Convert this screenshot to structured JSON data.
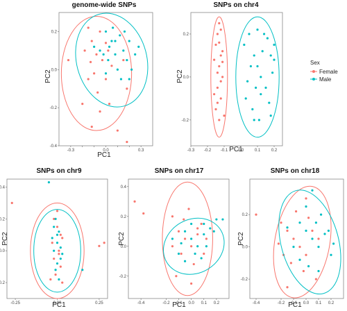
{
  "legend": {
    "title": "Sex",
    "entries": [
      {
        "label": "Female",
        "color": "#f8766d"
      },
      {
        "label": "Male",
        "color": "#00bfc4"
      }
    ]
  },
  "colors": {
    "female": "#f8766d",
    "male": "#00bfc4"
  },
  "chart_data": [
    {
      "type": "scatter",
      "title": "genome-wide SNPs",
      "xlabel": "PC1",
      "ylabel": "PC2",
      "xlim": [
        -0.4,
        0.4
      ],
      "ylim": [
        -0.4,
        0.3
      ],
      "xticks": [
        -0.3,
        -0.2,
        -0.1,
        0.0,
        0.1,
        0.2,
        0.3
      ],
      "xtick_labels": [
        "-0.3",
        "",
        "",
        "0.0",
        "",
        "",
        "0.3"
      ],
      "yticks": [
        -0.4,
        -0.2,
        0.0,
        0.2
      ],
      "ytick_labels": [
        "-0.4",
        "-0.2",
        "0.0",
        "0.2"
      ],
      "series": [
        {
          "name": "Female",
          "ellipse": {
            "cx": -0.08,
            "cy": -0.02,
            "rx": 0.3,
            "ry": 0.3,
            "angle": 0
          },
          "points": [
            [
              -0.32,
              0.05
            ],
            [
              -0.18,
              0.1
            ],
            [
              -0.15,
              0.22
            ],
            [
              -0.13,
              0.04
            ],
            [
              -0.12,
              0.15
            ],
            [
              -0.1,
              -0.02
            ],
            [
              -0.08,
              0.08
            ],
            [
              -0.07,
              -0.12
            ],
            [
              -0.05,
              0.2
            ],
            [
              -0.03,
              0.05
            ],
            [
              0.0,
              -0.05
            ],
            [
              0.02,
              0.1
            ],
            [
              0.05,
              0.02
            ],
            [
              -0.12,
              -0.3
            ],
            [
              -0.05,
              -0.22
            ],
            [
              0.1,
              -0.32
            ],
            [
              0.18,
              -0.1
            ],
            [
              0.0,
              0.14
            ],
            [
              -0.15,
              -0.05
            ],
            [
              -0.2,
              -0.18
            ],
            [
              0.03,
              -0.18
            ],
            [
              0.18,
              -0.38
            ],
            [
              0.15,
              0.05
            ]
          ]
        },
        {
          "name": "Male",
          "ellipse": {
            "cx": 0.05,
            "cy": 0.05,
            "rx": 0.3,
            "ry": 0.25,
            "angle": -15
          },
          "points": [
            [
              -0.05,
              0.1
            ],
            [
              0.0,
              0.2
            ],
            [
              0.02,
              0.05
            ],
            [
              0.05,
              0.15
            ],
            [
              0.08,
              0.08
            ],
            [
              0.1,
              0.0
            ],
            [
              0.12,
              0.18
            ],
            [
              0.15,
              0.1
            ],
            [
              0.18,
              0.05
            ],
            [
              0.2,
              0.15
            ],
            [
              0.22,
              0.0
            ],
            [
              0.25,
              0.08
            ],
            [
              -0.1,
              0.12
            ],
            [
              0.06,
              0.22
            ],
            [
              0.13,
              -0.05
            ],
            [
              0.0,
              -0.02
            ],
            [
              -0.02,
              0.08
            ],
            [
              0.03,
              0.12
            ],
            [
              0.08,
              0.15
            ],
            [
              0.16,
              0.2
            ],
            [
              0.2,
              -0.05
            ],
            [
              0.28,
              0.12
            ]
          ]
        }
      ]
    },
    {
      "type": "scatter",
      "title": "SNPs on chr4",
      "xlabel": "PC1",
      "ylabel": "PC2",
      "xlim": [
        -0.3,
        0.25
      ],
      "ylim": [
        -0.32,
        0.3
      ],
      "xticks": [
        -0.3,
        -0.2,
        -0.1,
        0.0,
        0.1,
        0.2
      ],
      "xtick_labels": [
        "-0.3",
        "-0.2",
        "-0.1",
        "0.0",
        "0.1",
        "0.2"
      ],
      "yticks": [
        -0.2,
        0.0,
        0.2
      ],
      "ytick_labels": [
        "-0.2",
        "0.0",
        "0.2"
      ],
      "series": [
        {
          "name": "Female",
          "ellipse": {
            "cx": -0.13,
            "cy": 0.0,
            "rx": 0.05,
            "ry": 0.28,
            "angle": 0
          },
          "points": [
            [
              -0.15,
              0.15
            ],
            [
              -0.14,
              0.2
            ],
            [
              -0.12,
              0.1
            ],
            [
              -0.13,
              0.05
            ],
            [
              -0.11,
              0.0
            ],
            [
              -0.14,
              -0.05
            ],
            [
              -0.12,
              -0.1
            ],
            [
              -0.15,
              -0.15
            ],
            [
              -0.13,
              -0.2
            ],
            [
              -0.11,
              0.12
            ],
            [
              -0.16,
              0.08
            ],
            [
              -0.12,
              -0.02
            ],
            [
              -0.14,
              0.02
            ],
            [
              -0.1,
              -0.18
            ],
            [
              -0.13,
              0.25
            ],
            [
              -0.16,
              -0.08
            ],
            [
              -0.11,
              0.07
            ],
            [
              -0.14,
              -0.12
            ],
            [
              -0.13,
              0.16
            ],
            [
              -0.12,
              0.22
            ]
          ]
        },
        {
          "name": "Male",
          "ellipse": {
            "cx": 0.1,
            "cy": 0.0,
            "rx": 0.13,
            "ry": 0.28,
            "angle": 0
          },
          "points": [
            [
              0.02,
              0.15
            ],
            [
              0.05,
              0.2
            ],
            [
              0.08,
              0.1
            ],
            [
              0.1,
              0.05
            ],
            [
              0.12,
              0.0
            ],
            [
              0.15,
              -0.05
            ],
            [
              0.18,
              0.1
            ],
            [
              0.2,
              0.15
            ],
            [
              0.03,
              -0.1
            ],
            [
              0.07,
              -0.15
            ],
            [
              0.11,
              -0.2
            ],
            [
              0.14,
              0.2
            ],
            [
              0.17,
              -0.12
            ],
            [
              0.19,
              0.02
            ],
            [
              0.06,
              0.05
            ],
            [
              0.09,
              -0.05
            ],
            [
              0.13,
              0.12
            ],
            [
              0.16,
              0.18
            ],
            [
              0.04,
              -0.02
            ],
            [
              0.08,
              -0.2
            ],
            [
              0.12,
              -0.08
            ],
            [
              0.18,
              -0.18
            ],
            [
              0.2,
              0.08
            ],
            [
              0.1,
              0.22
            ]
          ]
        }
      ]
    },
    {
      "type": "scatter",
      "title": "SNPs on chr9",
      "xlabel": "PC1",
      "ylabel": "PC2",
      "xlim": [
        -0.3,
        0.3
      ],
      "ylim": [
        -0.3,
        0.45
      ],
      "xticks": [
        -0.25,
        0.0,
        0.25
      ],
      "xtick_labels": [
        "-0.25",
        "0.00",
        "0.25"
      ],
      "yticks": [
        -0.2,
        0.0,
        0.2,
        0.4
      ],
      "ytick_labels": [
        "-0.2",
        "0.0",
        "0.2",
        "0.4"
      ],
      "series": [
        {
          "name": "Female",
          "ellipse": {
            "cx": 0.0,
            "cy": 0.0,
            "rx": 0.16,
            "ry": 0.3,
            "angle": 0
          },
          "points": [
            [
              -0.02,
              0.2
            ],
            [
              0.0,
              0.15
            ],
            [
              0.02,
              0.1
            ],
            [
              -0.03,
              0.05
            ],
            [
              0.01,
              0.0
            ],
            [
              -0.02,
              -0.05
            ],
            [
              0.02,
              -0.1
            ],
            [
              -0.01,
              -0.15
            ],
            [
              0.03,
              -0.2
            ],
            [
              0.28,
              0.05
            ],
            [
              0.25,
              0.03
            ],
            [
              -0.27,
              0.3
            ],
            [
              0.0,
              0.25
            ],
            [
              -0.04,
              -0.18
            ],
            [
              0.03,
              0.08
            ],
            [
              0.01,
              -0.02
            ]
          ]
        },
        {
          "name": "Male",
          "ellipse": {
            "cx": 0.0,
            "cy": 0.0,
            "rx": 0.14,
            "ry": 0.26,
            "angle": 0
          },
          "points": [
            [
              -0.01,
              0.2
            ],
            [
              0.01,
              0.12
            ],
            [
              0.0,
              0.05
            ],
            [
              -0.02,
              0.0
            ],
            [
              0.02,
              -0.05
            ],
            [
              -0.01,
              -0.12
            ],
            [
              0.01,
              -0.18
            ],
            [
              0.0,
              0.1
            ],
            [
              -0.03,
              0.08
            ],
            [
              0.02,
              0.02
            ],
            [
              -0.05,
              0.43
            ],
            [
              0.15,
              -0.12
            ],
            [
              0.0,
              -0.08
            ],
            [
              -0.02,
              0.15
            ],
            [
              0.03,
              -0.02
            ]
          ]
        }
      ]
    },
    {
      "type": "scatter",
      "title": "SNPs on chr17",
      "xlabel": "PC1",
      "ylabel": "PC2",
      "xlim": [
        -0.5,
        0.3
      ],
      "ylim": [
        -0.35,
        0.45
      ],
      "xticks": [
        -0.4,
        -0.2,
        -0.1,
        0.0,
        0.1,
        0.2
      ],
      "xtick_labels": [
        "-0.4",
        "-0.2",
        "-0.1",
        "0.0",
        "0.1",
        "0.2"
      ],
      "yticks": [
        -0.2,
        0.0,
        0.2,
        0.4
      ],
      "ytick_labels": [
        "-0.2",
        "0.0",
        "0.2",
        "0.4"
      ],
      "series": [
        {
          "name": "Female",
          "ellipse": {
            "cx": -0.03,
            "cy": 0.05,
            "rx": 0.2,
            "ry": 0.38,
            "angle": 0
          },
          "points": [
            [
              -0.45,
              0.3
            ],
            [
              -0.38,
              0.22
            ],
            [
              -0.15,
              0.2
            ],
            [
              -0.1,
              0.1
            ],
            [
              -0.05,
              0.05
            ],
            [
              0.0,
              0.0
            ],
            [
              0.05,
              0.08
            ],
            [
              -0.08,
              -0.05
            ],
            [
              0.02,
              -0.12
            ],
            [
              -0.12,
              -0.2
            ],
            [
              0.08,
              0.15
            ],
            [
              -0.02,
              0.25
            ],
            [
              0.1,
              -0.05
            ],
            [
              -0.15,
              0.0
            ],
            [
              0.0,
              -0.25
            ],
            [
              0.05,
              0.12
            ],
            [
              -0.06,
              0.18
            ],
            [
              0.12,
              0.05
            ]
          ]
        },
        {
          "name": "Male",
          "ellipse": {
            "cx": 0.02,
            "cy": 0.0,
            "rx": 0.25,
            "ry": 0.18,
            "angle": -30
          },
          "points": [
            [
              -0.05,
              0.1
            ],
            [
              0.0,
              0.05
            ],
            [
              0.05,
              0.0
            ],
            [
              0.1,
              0.08
            ],
            [
              0.15,
              0.12
            ],
            [
              0.2,
              0.18
            ],
            [
              -0.1,
              -0.05
            ],
            [
              -0.05,
              -0.1
            ],
            [
              0.08,
              -0.08
            ],
            [
              0.12,
              0.0
            ],
            [
              0.18,
              0.1
            ],
            [
              0.25,
              0.18
            ],
            [
              -0.15,
              0.05
            ],
            [
              0.0,
              0.15
            ],
            [
              0.03,
              -0.05
            ],
            [
              0.1,
              0.15
            ],
            [
              -0.08,
              0.02
            ]
          ]
        }
      ]
    },
    {
      "type": "scatter",
      "title": "SNPs on chr18",
      "xlabel": "PC1",
      "ylabel": "PC2",
      "xlim": [
        -0.45,
        0.3
      ],
      "ylim": [
        -0.32,
        0.42
      ],
      "xticks": [
        -0.4,
        -0.2,
        -0.1,
        0.0,
        0.1,
        0.2
      ],
      "xtick_labels": [
        "-0.4",
        "-0.2",
        "-0.1",
        "0.0",
        "0.1",
        "0.2"
      ],
      "yticks": [
        -0.2,
        0.0,
        0.2
      ],
      "ytick_labels": [
        "-0.2",
        "0.0",
        "0.2"
      ],
      "series": [
        {
          "name": "Female",
          "ellipse": {
            "cx": -0.03,
            "cy": 0.03,
            "rx": 0.22,
            "ry": 0.35,
            "angle": 10
          },
          "points": [
            [
              -0.4,
              0.2
            ],
            [
              -0.2,
              0.15
            ],
            [
              -0.15,
              0.1
            ],
            [
              -0.1,
              0.05
            ],
            [
              -0.05,
              0.0
            ],
            [
              0.0,
              -0.05
            ],
            [
              0.05,
              0.1
            ],
            [
              -0.12,
              -0.1
            ],
            [
              -0.02,
              -0.15
            ],
            [
              0.08,
              -0.2
            ],
            [
              -0.18,
              -0.05
            ],
            [
              0.02,
              0.18
            ],
            [
              -0.08,
              0.22
            ],
            [
              0.1,
              0.05
            ],
            [
              -0.22,
              0.02
            ],
            [
              0.0,
              0.3
            ],
            [
              -0.15,
              -0.25
            ]
          ]
        },
        {
          "name": "Male",
          "ellipse": {
            "cx": 0.03,
            "cy": 0.03,
            "rx": 0.23,
            "ry": 0.33,
            "angle": -15
          },
          "points": [
            [
              -0.05,
              0.15
            ],
            [
              0.0,
              0.1
            ],
            [
              0.05,
              0.05
            ],
            [
              0.1,
              0.0
            ],
            [
              0.15,
              0.08
            ],
            [
              0.2,
              -0.05
            ],
            [
              -0.1,
              0.0
            ],
            [
              -0.05,
              -0.08
            ],
            [
              0.02,
              -0.12
            ],
            [
              0.08,
              0.15
            ],
            [
              0.12,
              0.2
            ],
            [
              0.18,
              0.1
            ],
            [
              0.05,
              0.35
            ],
            [
              -0.15,
              0.12
            ],
            [
              0.0,
              0.25
            ],
            [
              0.1,
              -0.15
            ],
            [
              0.22,
              0.02
            ]
          ]
        }
      ]
    }
  ]
}
